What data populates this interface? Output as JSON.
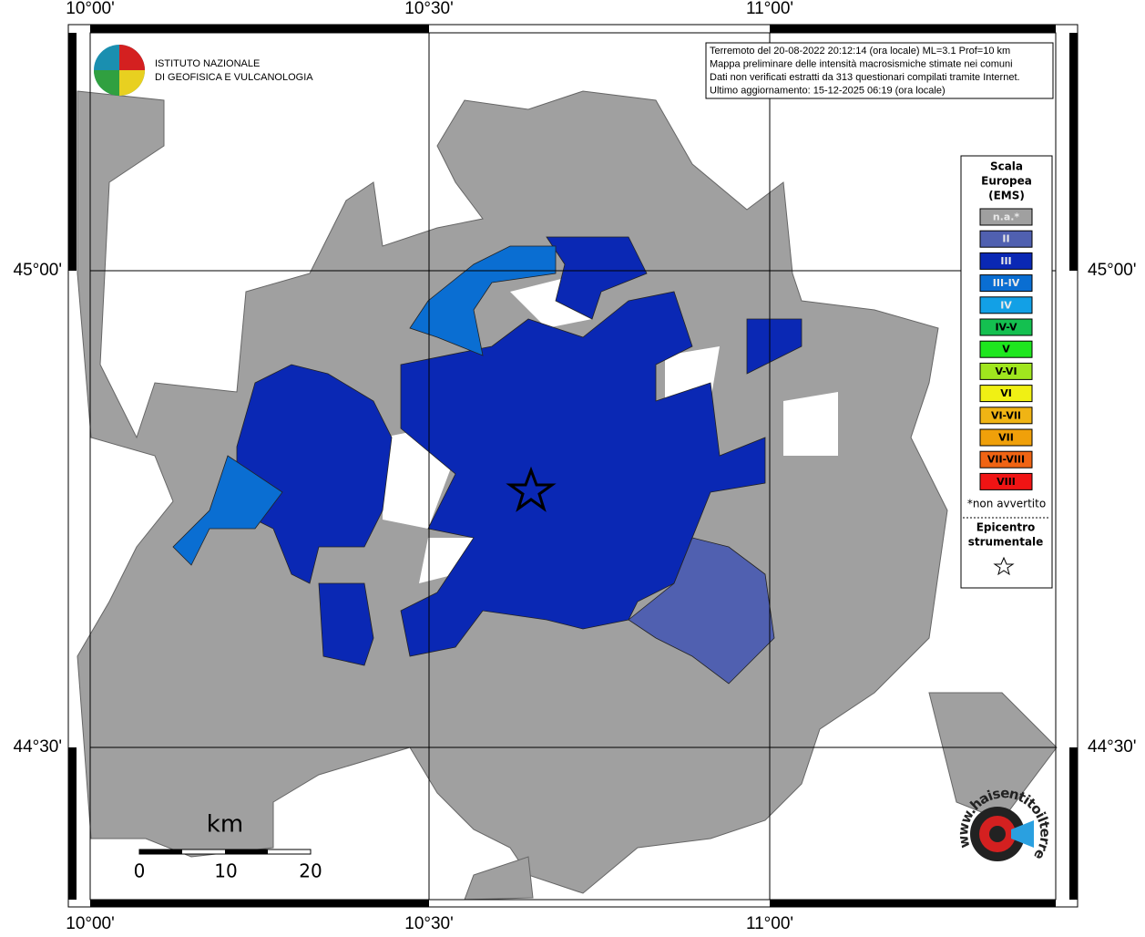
{
  "axes": {
    "top": [
      "10°00'",
      "10°30'",
      "11°00'"
    ],
    "bottom": [
      "10°00'",
      "10°30'",
      "11°00'"
    ],
    "left": [
      "45°00'",
      "44°30'"
    ],
    "right": [
      "45°00'",
      "44°30'"
    ]
  },
  "logo": {
    "line1": "ISTITUTO NAZIONALE",
    "line2": "DI GEOFISICA E VULCANOLOGIA"
  },
  "info": {
    "lines": [
      "Terremoto del 20-08-2022 20:12:14 (ora locale) ML=3.1 Prof=10 km",
      "Mappa preliminare delle intensità macrosismiche stimate nei comuni",
      "Dati non verificati estratti da 313 questionari compilati tramite Internet.",
      "Ultimo aggiornamento: 15-12-2025 06:19 (ora locale)"
    ]
  },
  "legend": {
    "title": [
      "Scala",
      "Europea",
      "(EMS)"
    ],
    "items": [
      {
        "label": "n.a.*",
        "color": "#a0a0a0"
      },
      {
        "label": "II",
        "color": "#5060b0"
      },
      {
        "label": "III",
        "color": "#0a28b4"
      },
      {
        "label": "III-IV",
        "color": "#0a6ed2"
      },
      {
        "label": "IV",
        "color": "#12a0e6"
      },
      {
        "label": "IV-V",
        "color": "#14c050"
      },
      {
        "label": "V",
        "color": "#1ee61e"
      },
      {
        "label": "V-VI",
        "color": "#a0e61e"
      },
      {
        "label": "VI",
        "color": "#f0f014"
      },
      {
        "label": "VI-VII",
        "color": "#f0b414"
      },
      {
        "label": "VII",
        "color": "#f0a00a"
      },
      {
        "label": "VII-VIII",
        "color": "#f06414"
      },
      {
        "label": "VIII",
        "color": "#f01414"
      }
    ],
    "note": "*non avvertito",
    "epicenter": [
      "Epicentro",
      "strumentale"
    ]
  },
  "scale": {
    "unit": "km",
    "ticks": [
      0,
      10,
      20
    ]
  },
  "badge": {
    "text": "www.haisentitoilterremoto.it"
  }
}
